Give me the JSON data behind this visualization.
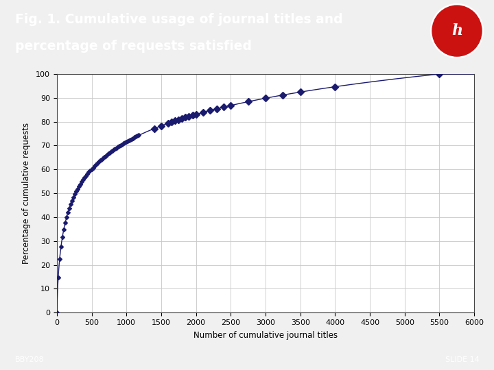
{
  "title_line1": "Fig. 1. Cumulative usage of journal titles and",
  "title_line2": "percentage of requests satisfied",
  "title_bg_color": "#29a8cc",
  "title_text_color": "#ffffff",
  "xlabel": "Number of cumulative journal titles",
  "ylabel": "Percentage of cumulative requests",
  "xlim": [
    0,
    6000
  ],
  "ylim": [
    0,
    100
  ],
  "xticks": [
    0,
    500,
    1000,
    1500,
    2000,
    2500,
    3000,
    3500,
    4000,
    4500,
    5000,
    5500,
    6000
  ],
  "yticks": [
    0,
    10,
    20,
    30,
    40,
    50,
    60,
    70,
    80,
    90,
    100
  ],
  "line_color": "#1a1a6e",
  "marker_color": "#1a1a6e",
  "footer_bg_color": "#29a8cc",
  "footer_text_left": "BBY208",
  "footer_text_right": "SLIDE 14",
  "footer_text_color": "#ffffff",
  "plot_bg_color": "#ffffff",
  "grid_color": "#c8c8c8",
  "curve_k": 0.07,
  "curve_xmax": 5500,
  "dense_marker_x_end": 1200,
  "dense_marker_step": 20,
  "sparse_marked_x": [
    1400,
    1500,
    1600,
    1650,
    1700,
    1750,
    1800,
    1850,
    1900,
    1950,
    2000,
    2100,
    2200,
    2300,
    2400,
    2500,
    2750,
    3000,
    3250,
    3500,
    4000,
    5500
  ]
}
